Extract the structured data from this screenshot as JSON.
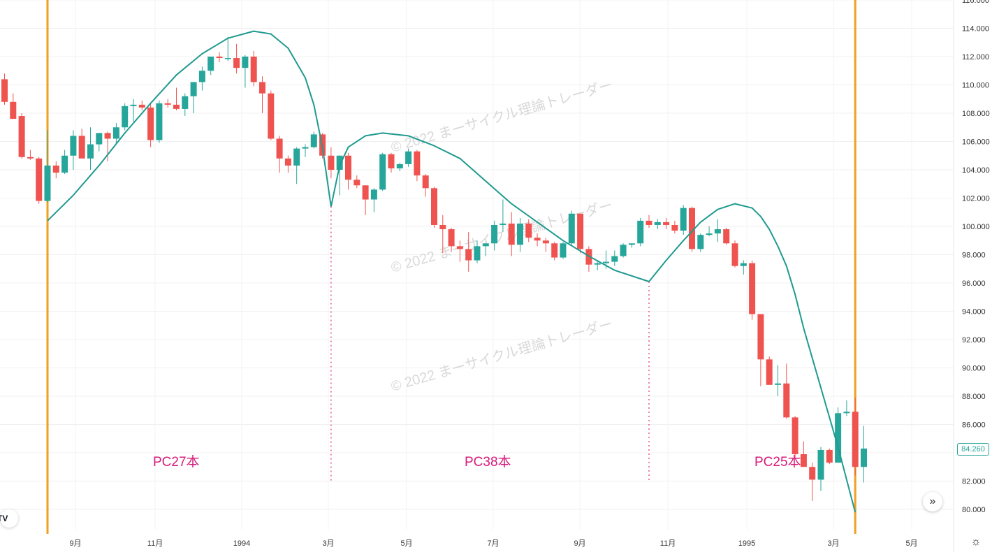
{
  "chart_data": {
    "type": "candlestick",
    "y_axis": {
      "ticks": [
        "80.000",
        "82.000",
        "84.000",
        "86.000",
        "88.000",
        "90.000",
        "92.000",
        "94.000",
        "96.000",
        "98.000",
        "100.000",
        "102.000",
        "104.000",
        "106.000",
        "108.000",
        "110.000",
        "112.000",
        "114.000",
        "116.000"
      ],
      "range": [
        79,
        116
      ]
    },
    "x_axis": {
      "labels": [
        "9月",
        "11月",
        "1994",
        "3月",
        "5月",
        "7月",
        "9月",
        "11月",
        "1995",
        "3月",
        "5月"
      ]
    },
    "last_price": "84.260",
    "candles": [
      [
        110.4,
        110.8,
        108.6,
        108.8
      ],
      [
        108.8,
        109.4,
        107.8,
        107.6
      ],
      [
        107.8,
        108.0,
        104.8,
        104.9
      ],
      [
        104.9,
        105.4,
        104.7,
        104.8
      ],
      [
        104.8,
        104.9,
        101.6,
        101.8
      ],
      [
        101.8,
        106.8,
        101.7,
        104.3
      ],
      [
        104.3,
        104.6,
        103.4,
        103.8
      ],
      [
        103.8,
        105.4,
        103.7,
        105.0
      ],
      [
        105.0,
        106.8,
        104.0,
        106.4
      ],
      [
        106.4,
        106.9,
        104.9,
        104.8
      ],
      [
        104.8,
        107.0,
        104.0,
        105.8
      ],
      [
        105.8,
        106.6,
        105.3,
        106.6
      ],
      [
        106.6,
        106.7,
        104.6,
        106.2
      ],
      [
        106.2,
        107.3,
        105.8,
        107.0
      ],
      [
        107.0,
        108.7,
        106.8,
        108.5
      ],
      [
        108.5,
        109.0,
        107.4,
        108.6
      ],
      [
        108.6,
        108.9,
        108.2,
        108.4
      ],
      [
        108.4,
        108.7,
        105.6,
        106.1
      ],
      [
        106.1,
        108.9,
        105.9,
        108.7
      ],
      [
        108.7,
        109.0,
        108.4,
        108.6
      ],
      [
        108.6,
        109.8,
        108.2,
        108.3
      ],
      [
        108.3,
        109.4,
        107.8,
        109.2
      ],
      [
        109.2,
        110.0,
        108.0,
        110.2
      ],
      [
        110.2,
        111.3,
        109.6,
        111.0
      ],
      [
        111.0,
        112.0,
        110.7,
        112.0
      ],
      [
        112.0,
        112.3,
        111.6,
        111.9
      ],
      [
        111.9,
        113.4,
        111.7,
        111.9
      ],
      [
        111.9,
        112.9,
        110.8,
        111.2
      ],
      [
        111.2,
        112.1,
        109.8,
        112.0
      ],
      [
        112.0,
        112.4,
        109.9,
        110.2
      ],
      [
        110.2,
        110.6,
        108.0,
        109.4
      ],
      [
        109.4,
        109.6,
        106.1,
        106.2
      ],
      [
        106.2,
        106.4,
        103.8,
        104.8
      ],
      [
        104.8,
        105.0,
        103.8,
        104.3
      ],
      [
        104.3,
        105.6,
        103.0,
        105.5
      ],
      [
        105.5,
        105.8,
        104.9,
        105.6
      ],
      [
        105.6,
        106.7,
        105.5,
        106.5
      ],
      [
        106.5,
        106.6,
        104.8,
        105.0
      ],
      [
        105.0,
        105.6,
        103.4,
        104.0
      ],
      [
        104.0,
        105.0,
        102.2,
        105.0
      ],
      [
        105.0,
        105.2,
        102.6,
        103.3
      ],
      [
        103.3,
        103.6,
        102.7,
        102.9
      ],
      [
        102.9,
        102.9,
        100.8,
        101.9
      ],
      [
        101.9,
        102.7,
        101.0,
        102.6
      ],
      [
        102.6,
        105.2,
        102.5,
        105.1
      ],
      [
        105.1,
        105.2,
        103.8,
        104.1
      ],
      [
        104.1,
        104.5,
        103.9,
        104.4
      ],
      [
        104.4,
        105.5,
        104.2,
        105.3
      ],
      [
        105.3,
        105.4,
        103.2,
        103.6
      ],
      [
        103.6,
        103.7,
        102.1,
        102.7
      ],
      [
        102.7,
        102.8,
        99.9,
        100.1
      ],
      [
        100.1,
        100.8,
        98.1,
        99.8
      ],
      [
        99.8,
        99.9,
        98.2,
        98.6
      ],
      [
        98.6,
        99.0,
        97.5,
        98.4
      ],
      [
        98.4,
        99.6,
        96.8,
        97.6
      ],
      [
        97.6,
        99.0,
        97.4,
        98.6
      ],
      [
        98.6,
        98.8,
        97.9,
        98.8
      ],
      [
        98.8,
        100.4,
        98.3,
        100.1
      ],
      [
        100.1,
        101.9,
        99.6,
        100.2
      ],
      [
        100.2,
        101.0,
        97.9,
        98.7
      ],
      [
        98.7,
        100.6,
        98.2,
        100.2
      ],
      [
        100.2,
        100.5,
        98.9,
        99.2
      ],
      [
        99.2,
        99.5,
        98.6,
        99.0
      ],
      [
        99.0,
        99.2,
        98.2,
        98.8
      ],
      [
        98.8,
        98.9,
        97.6,
        97.8
      ],
      [
        97.8,
        98.9,
        97.7,
        98.8
      ],
      [
        98.8,
        101.1,
        98.6,
        100.9
      ],
      [
        100.9,
        100.9,
        98.1,
        98.4
      ],
      [
        98.4,
        98.6,
        96.8,
        97.3
      ],
      [
        97.3,
        97.6,
        96.9,
        97.4
      ],
      [
        97.4,
        98.3,
        97.0,
        97.5
      ],
      [
        97.5,
        98.3,
        97.2,
        97.9
      ],
      [
        97.9,
        98.8,
        97.8,
        98.7
      ],
      [
        98.7,
        98.8,
        98.5,
        98.8
      ],
      [
        98.8,
        100.6,
        98.6,
        100.4
      ],
      [
        100.4,
        100.8,
        99.9,
        100.1
      ],
      [
        100.1,
        100.5,
        99.8,
        100.3
      ],
      [
        100.3,
        100.6,
        99.8,
        100.1
      ],
      [
        100.1,
        100.4,
        99.5,
        99.7
      ],
      [
        99.7,
        101.5,
        99.4,
        101.3
      ],
      [
        101.3,
        101.4,
        98.2,
        98.4
      ],
      [
        98.4,
        99.5,
        98.2,
        99.4
      ],
      [
        99.4,
        100.0,
        99.3,
        99.5
      ],
      [
        99.5,
        100.5,
        98.9,
        99.8
      ],
      [
        99.8,
        99.9,
        98.7,
        98.8
      ],
      [
        98.8,
        99.0,
        97.1,
        97.2
      ],
      [
        97.2,
        97.6,
        96.6,
        97.4
      ],
      [
        97.4,
        97.6,
        93.4,
        93.8
      ],
      [
        93.8,
        93.8,
        88.7,
        90.6
      ],
      [
        90.6,
        90.8,
        88.8,
        88.8
      ],
      [
        88.8,
        90.2,
        88.0,
        88.9
      ],
      [
        88.9,
        90.3,
        86.4,
        86.5
      ],
      [
        86.5,
        86.6,
        83.6,
        83.9
      ],
      [
        83.9,
        84.8,
        83.0,
        83.0
      ],
      [
        83.0,
        83.3,
        80.6,
        82.1
      ],
      [
        82.1,
        84.4,
        81.3,
        84.2
      ],
      [
        84.2,
        84.3,
        83.2,
        83.3
      ],
      [
        83.3,
        87.2,
        83.3,
        86.8
      ],
      [
        86.8,
        87.7,
        86.6,
        86.9
      ],
      [
        86.9,
        87.9,
        82.4,
        83.0
      ],
      [
        83.0,
        85.9,
        81.9,
        84.3
      ]
    ],
    "cycle_curves": [
      [
        [
          0,
          100.4
        ],
        [
          3,
          102.2
        ],
        [
          6,
          104.3
        ],
        [
          9,
          106.6
        ],
        [
          12,
          108.7
        ],
        [
          15,
          110.7
        ],
        [
          18,
          112.2
        ],
        [
          21,
          113.3
        ],
        [
          24,
          113.8
        ],
        [
          26,
          113.6
        ],
        [
          28,
          112.6
        ],
        [
          30,
          110.5
        ],
        [
          31,
          108.6
        ],
        [
          32,
          105.6
        ],
        [
          33,
          101.4
        ]
      ],
      [
        [
          33,
          101.4
        ],
        [
          34,
          104.3
        ],
        [
          35,
          105.6
        ],
        [
          37,
          106.4
        ],
        [
          39,
          106.6
        ],
        [
          42,
          106.4
        ],
        [
          45,
          105.7
        ],
        [
          48,
          104.8
        ],
        [
          51,
          103.2
        ],
        [
          54,
          101.6
        ],
        [
          57,
          100.3
        ],
        [
          60,
          99.0
        ],
        [
          63,
          97.9
        ],
        [
          66,
          96.9
        ],
        [
          70,
          96.1
        ]
      ],
      [
        [
          70,
          96.1
        ],
        [
          72,
          97.6
        ],
        [
          74,
          99.0
        ],
        [
          76,
          100.3
        ],
        [
          78,
          101.2
        ],
        [
          80,
          101.6
        ],
        [
          82,
          101.3
        ],
        [
          83,
          100.7
        ],
        [
          84,
          99.8
        ],
        [
          85,
          98.6
        ],
        [
          86,
          97.2
        ],
        [
          87,
          95.2
        ],
        [
          88,
          92.8
        ],
        [
          90,
          88.6
        ],
        [
          92,
          84.4
        ],
        [
          94,
          79.8
        ]
      ]
    ],
    "cycle_lines_at": [
      0,
      94
    ],
    "dotted_lines_at": [
      33,
      70
    ],
    "cycle_labels": [
      "PC27本",
      "PC38本",
      "PC25本"
    ],
    "watermark": "© 2022 まーサイクル理論トレーダー",
    "colors": {
      "up": "#26a69a",
      "down": "#ef5350",
      "curve": "#1f9a8f",
      "cycle_line": "#f0a020",
      "dotted": "#e0559a",
      "label": "#d81b7a"
    }
  },
  "controls": {
    "scroll_icon": "double-chevron-right-icon",
    "settings_icon": "gear-icon",
    "scroll_glyph": "»",
    "settings_glyph": "☼",
    "logo_text": "TV"
  }
}
